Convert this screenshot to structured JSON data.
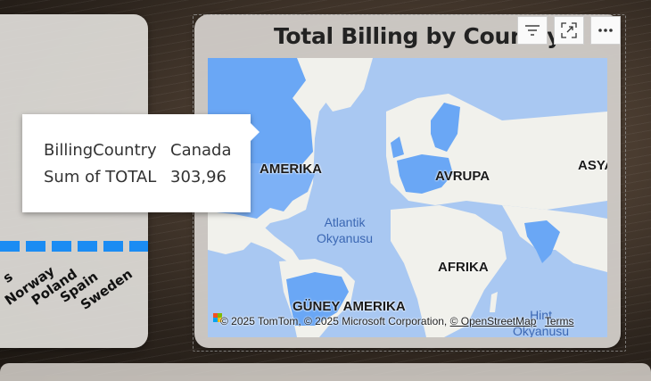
{
  "map_visual": {
    "title": "Total Billing by Country",
    "labels": {
      "north_america": "AMERIKA",
      "europe": "AVRUPA",
      "asia": "ASYA",
      "africa": "AFRIKA",
      "south_america": "GÜNEY AMERIKA",
      "atlantic_line1": "Atlantik",
      "atlantic_line2": "Okyanusu",
      "indian_line1": "Hint",
      "indian_line2": "Okyanusu"
    },
    "copyright": {
      "tomtom": "© 2025 TomTom, © 2025 Microsoft Corporation,",
      "osm": "© OpenStreetMap",
      "terms": "Terms"
    },
    "toolbar": {
      "filter_icon": "filter-icon",
      "focus_icon": "focus-mode-icon",
      "more_icon": "more-options-icon"
    },
    "colors": {
      "highlight_country": "#6aa7f5",
      "land": "#f1f1ec",
      "water": "#a9c8f2"
    }
  },
  "tooltip": {
    "rows": [
      {
        "key": "BillingCountry",
        "value": "Canada"
      },
      {
        "key": "Sum of TOTAL",
        "value": "303,96"
      }
    ]
  },
  "bar_visual": {
    "x_labels": [
      "s",
      "Norway",
      "Poland",
      "Spain",
      "Sweden"
    ],
    "bar_color": "#1b8cf3"
  }
}
